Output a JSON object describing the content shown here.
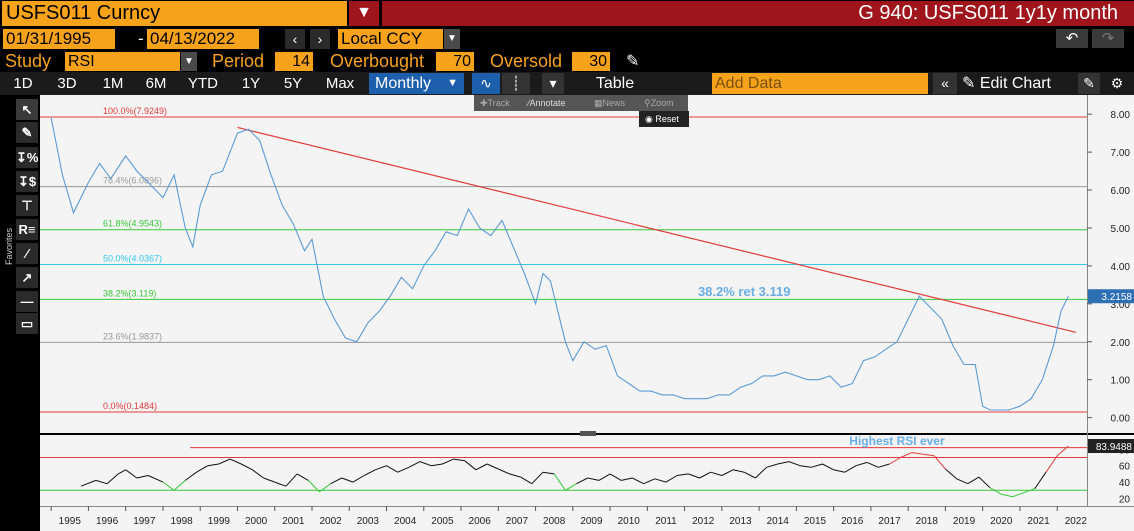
{
  "header": {
    "ticker": "USFS011 Curncy",
    "title": "G 940: USFS011 1y1y month"
  },
  "dates": {
    "start": "01/31/1995",
    "end": "04/13/2022",
    "currency": "Local CCY"
  },
  "study": {
    "label": "Study",
    "value": "RSI",
    "period_label": "Period",
    "period": "14",
    "overbought_label": "Overbought",
    "overbought": "70",
    "oversold_label": "Oversold",
    "oversold": "30"
  },
  "toolbar": {
    "ranges": [
      "1D",
      "3D",
      "1M",
      "6M",
      "YTD",
      "1Y",
      "5Y",
      "Max"
    ],
    "frequency": "Monthly",
    "table_label": "Table",
    "add_data_placeholder": "Add Data",
    "edit_chart_label": "Edit Chart"
  },
  "mini_tools": {
    "track": "Track",
    "annotate": "Annotate",
    "news": "News",
    "zoom": "Zoom",
    "reset": "Reset"
  },
  "side_panel": {
    "favorites_label": "Favorites"
  },
  "colors": {
    "orange": "#f7a21b",
    "red_header": "#a0141c",
    "price_line": "#5b9bd5",
    "fib_red": "#e33b3b",
    "fib_green": "#37c837",
    "fib_cyan": "#33ccee",
    "fib_gray": "#999999",
    "rsi_line": "#111111"
  },
  "chart_data": {
    "type": "line",
    "x_tick_labels": [
      "1995",
      "1996",
      "1997",
      "1998",
      "1999",
      "2000",
      "2001",
      "2002",
      "2003",
      "2004",
      "2005",
      "2006",
      "2007",
      "2008",
      "2009",
      "2010",
      "2011",
      "2012",
      "2013",
      "2014",
      "2015",
      "2016",
      "2017",
      "2018",
      "2019",
      "2020",
      "2021",
      "2022"
    ],
    "price": {
      "ylim": [
        -0.3,
        8.4
      ],
      "y_ticks": [
        0,
        1,
        2,
        3,
        4,
        5,
        6,
        7,
        8
      ],
      "y_tick_labels": [
        "0.00",
        "1.00",
        "2.00",
        "3.00",
        "4.00",
        "5.00",
        "6.00",
        "7.00",
        "8.00"
      ],
      "last_value_label": "3.2158",
      "series": {
        "x": [
          1995.0,
          1995.3,
          1995.6,
          1996.0,
          1996.3,
          1996.6,
          1997.0,
          1997.3,
          1997.6,
          1998.0,
          1998.3,
          1998.6,
          1998.8,
          1999.0,
          1999.3,
          1999.6,
          2000.0,
          2000.3,
          2000.6,
          2000.9,
          2001.2,
          2001.5,
          2001.8,
          2002.0,
          2002.3,
          2002.6,
          2002.9,
          2003.2,
          2003.5,
          2003.8,
          2004.1,
          2004.4,
          2004.7,
          2005.0,
          2005.3,
          2005.6,
          2005.9,
          2006.2,
          2006.5,
          2006.8,
          2007.1,
          2007.4,
          2007.7,
          2008.0,
          2008.2,
          2008.4,
          2008.6,
          2008.8,
          2009.0,
          2009.3,
          2009.6,
          2009.9,
          2010.2,
          2010.5,
          2010.8,
          2011.1,
          2011.4,
          2011.7,
          2012.0,
          2012.3,
          2012.6,
          2012.9,
          2013.2,
          2013.5,
          2013.8,
          2014.1,
          2014.4,
          2014.7,
          2015.0,
          2015.3,
          2015.6,
          2015.9,
          2016.2,
          2016.5,
          2016.8,
          2017.1,
          2017.4,
          2017.7,
          2018.0,
          2018.3,
          2018.6,
          2018.9,
          2019.2,
          2019.5,
          2019.8,
          2020.0,
          2020.2,
          2020.4,
          2020.7,
          2021.0,
          2021.3,
          2021.6,
          2021.9,
          2022.1,
          2022.3
        ],
        "y": [
          7.9,
          6.4,
          5.4,
          6.2,
          6.7,
          6.3,
          6.9,
          6.5,
          6.2,
          5.8,
          6.4,
          5.0,
          4.5,
          5.6,
          6.4,
          6.5,
          7.5,
          7.6,
          7.3,
          6.4,
          5.6,
          5.1,
          4.4,
          4.7,
          3.2,
          2.6,
          2.1,
          2.0,
          2.5,
          2.8,
          3.2,
          3.7,
          3.4,
          4.0,
          4.4,
          4.9,
          4.8,
          5.5,
          5.0,
          4.8,
          5.2,
          4.5,
          3.8,
          3.0,
          3.8,
          3.6,
          2.8,
          2.0,
          1.5,
          2.0,
          1.8,
          1.9,
          1.1,
          0.9,
          0.7,
          0.7,
          0.6,
          0.6,
          0.5,
          0.5,
          0.5,
          0.6,
          0.6,
          0.8,
          0.9,
          1.1,
          1.1,
          1.2,
          1.1,
          1.0,
          1.0,
          1.1,
          0.8,
          0.9,
          1.5,
          1.6,
          1.8,
          2.0,
          2.6,
          3.2,
          2.9,
          2.6,
          1.9,
          1.4,
          1.4,
          0.3,
          0.2,
          0.2,
          0.2,
          0.3,
          0.5,
          1.0,
          1.9,
          2.8,
          3.2
        ]
      },
      "fib_levels": [
        {
          "label": "100.0%(7.9249)",
          "value": 7.9249,
          "color": "#e33b3b"
        },
        {
          "label": "76.4%(6.0896)",
          "value": 6.0896,
          "color": "#999999"
        },
        {
          "label": "61.8%(4.9543)",
          "value": 4.9543,
          "color": "#37c837"
        },
        {
          "label": "50.0%(4.0367)",
          "value": 4.0367,
          "color": "#33ccee"
        },
        {
          "label": "38.2%(3.119)",
          "value": 3.119,
          "color": "#37c837"
        },
        {
          "label": "23.6%(1.9837)",
          "value": 1.9837,
          "color": "#999999"
        },
        {
          "label": "0.0%(0.1484)",
          "value": 0.1484,
          "color": "#e33b3b"
        }
      ],
      "trendline": {
        "x": [
          2000.0,
          2022.5
        ],
        "y": [
          7.65,
          2.25
        ]
      },
      "annotation": {
        "text": "38.2% ret 3.119",
        "x": 2013.6,
        "y": 3.2
      }
    },
    "rsi": {
      "ylim": [
        12,
        95
      ],
      "y_ticks": [
        20,
        40,
        60,
        80
      ],
      "y_tick_labels": [
        "20",
        "40",
        "60",
        "80"
      ],
      "last_value_label": "83.9488",
      "overbought": 70,
      "oversold": 30,
      "highest_level": 82,
      "annotation": {
        "text": "Highest RSI ever",
        "x": 2017.7,
        "y": 85
      },
      "series": {
        "x": [
          1995.8,
          1996.2,
          1996.5,
          1996.8,
          1997.0,
          1997.3,
          1997.6,
          1998.0,
          1998.3,
          1998.6,
          1998.9,
          1999.2,
          1999.5,
          1999.8,
          2000.1,
          2000.4,
          2000.7,
          2001.0,
          2001.3,
          2001.6,
          2001.9,
          2002.2,
          2002.5,
          2002.8,
          2003.1,
          2003.4,
          2003.7,
          2004.0,
          2004.3,
          2004.6,
          2004.9,
          2005.2,
          2005.5,
          2005.8,
          2006.1,
          2006.4,
          2006.7,
          2007.0,
          2007.3,
          2007.6,
          2007.9,
          2008.2,
          2008.5,
          2008.8,
          2009.1,
          2009.4,
          2009.7,
          2010.0,
          2010.3,
          2010.6,
          2010.9,
          2011.2,
          2011.5,
          2011.8,
          2012.1,
          2012.4,
          2012.7,
          2013.0,
          2013.3,
          2013.6,
          2013.9,
          2014.2,
          2014.5,
          2014.8,
          2015.1,
          2015.4,
          2015.7,
          2016.0,
          2016.3,
          2016.6,
          2016.9,
          2017.2,
          2017.5,
          2017.8,
          2018.1,
          2018.4,
          2018.7,
          2019.0,
          2019.3,
          2019.6,
          2019.9,
          2020.2,
          2020.5,
          2020.8,
          2021.1,
          2021.4,
          2021.7,
          2022.0,
          2022.3
        ],
        "y": [
          35,
          42,
          38,
          50,
          55,
          45,
          48,
          40,
          30,
          42,
          52,
          60,
          62,
          68,
          62,
          55,
          45,
          40,
          35,
          50,
          42,
          28,
          38,
          45,
          40,
          48,
          55,
          60,
          52,
          58,
          65,
          60,
          62,
          68,
          66,
          55,
          62,
          56,
          50,
          46,
          38,
          52,
          50,
          30,
          38,
          45,
          42,
          50,
          42,
          45,
          38,
          44,
          40,
          48,
          50,
          45,
          52,
          48,
          55,
          52,
          45,
          58,
          62,
          65,
          60,
          58,
          62,
          55,
          52,
          60,
          64,
          58,
          62,
          70,
          76,
          74,
          72,
          56,
          44,
          38,
          46,
          33,
          25,
          22,
          27,
          32,
          52,
          72,
          84
        ]
      }
    }
  }
}
